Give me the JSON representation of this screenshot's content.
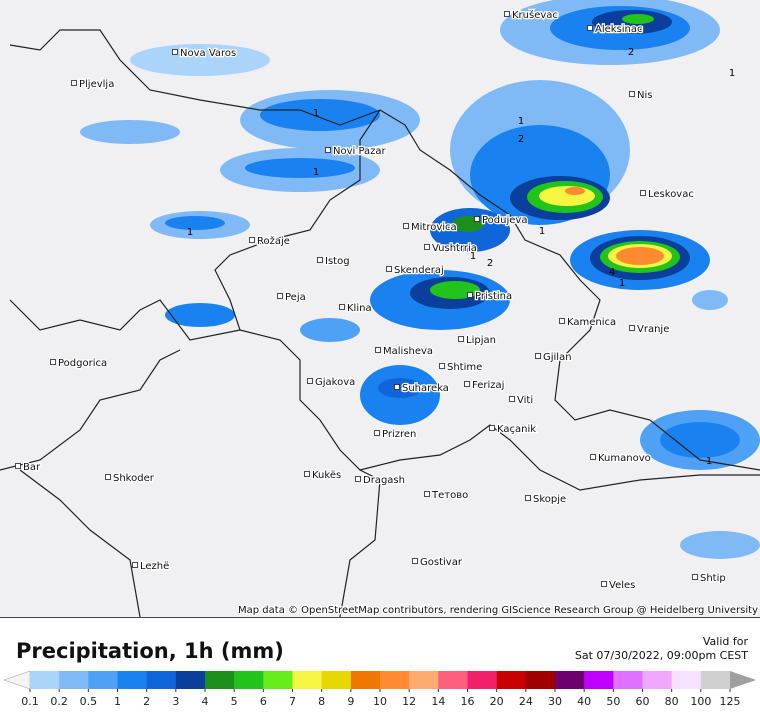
{
  "header": {
    "title": "Precipitation, 1h (mm)",
    "valid_label": "Valid for",
    "valid_time": "Sat 07/30/2022, 09:00pm CEST"
  },
  "attribution": "Map data © OpenStreetMap contributors, rendering GIScience Research Group @ Heidelberg University",
  "cities": [
    "Kruševac",
    "Aleksinac",
    "Nova Varos",
    "Pljevlja",
    "Nis",
    "Novi Pazar",
    "Leskovac",
    "Podujeva",
    "Mitrovica",
    "Vushtrria",
    "Rožaje",
    "Istog",
    "Skenderaj",
    "Pristina",
    "Peja",
    "Klina",
    "Kamenica",
    "Vranje",
    "Lipjan",
    "Malisheva",
    "Gjilan",
    "Podgorica",
    "Shtime",
    "Gjakova",
    "Suhareka",
    "Ferizaj",
    "Viti",
    "Prizren",
    "Kaçanik",
    "Kumanovo",
    "Bar",
    "Shkoder",
    "Kukës",
    "Dragash",
    "Тетово",
    "Skopje",
    "Gostivar",
    "Lezhë",
    "Veles",
    "Shtip"
  ],
  "contour_labels": [
    2,
    1,
    1,
    1,
    2,
    1,
    1,
    1,
    1,
    2,
    4,
    1,
    1
  ],
  "scale": {
    "ticks": [
      0.1,
      0.2,
      0.5,
      1,
      2,
      3,
      4,
      5,
      6,
      7,
      8,
      9,
      10,
      12,
      14,
      16,
      20,
      24,
      30,
      40,
      50,
      60,
      80,
      100,
      125
    ],
    "colors": [
      "#aad4fa",
      "#7fbaf6",
      "#4ea1f4",
      "#1a82f0",
      "#1066d8",
      "#0a3f9c",
      "#1c8f1c",
      "#22c31a",
      "#66ee1a",
      "#f5f542",
      "#e6d800",
      "#f07800",
      "#ff8a30",
      "#ffaa70",
      "#ff5f7f",
      "#f0206a",
      "#c80000",
      "#a00000",
      "#6e006e",
      "#c000ff",
      "#e070ff",
      "#f0a8ff",
      "#f8e0ff",
      "#d0d0d0"
    ]
  }
}
